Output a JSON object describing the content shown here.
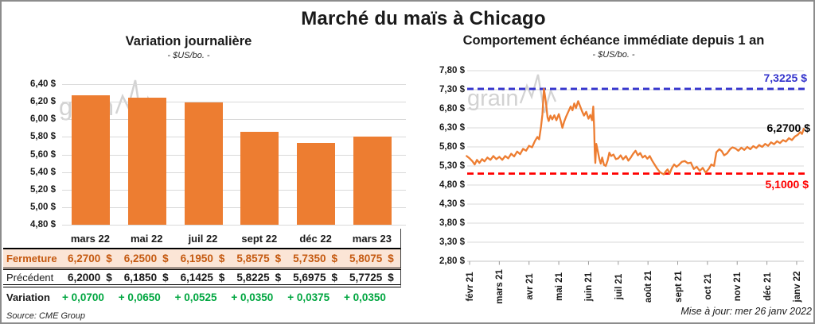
{
  "page": {
    "title": "Marché du maïs à Chicago",
    "updated": "Mise à jour: mer 26 janv 2022",
    "source": "Source: CME Group",
    "watermark": "grain"
  },
  "colors": {
    "orange": "#ED7D31",
    "blue": "#3333CC",
    "red": "#FF0000",
    "green": "#00A640",
    "fermeture_bg": "#FBE5D6",
    "fermeture_text": "#C55A11",
    "grid": "#D9D9D9",
    "watermark": "#CBCBCB"
  },
  "chart_data": [
    {
      "type": "bar",
      "title": "Variation journalière",
      "subtitle": "- $US/bo. -",
      "categories": [
        "mars 22",
        "mai 22",
        "juil 22",
        "sept 22",
        "déc 22",
        "mars 23"
      ],
      "values": [
        6.27,
        6.25,
        6.195,
        5.8575,
        5.735,
        5.8075
      ],
      "ylim": [
        4.8,
        6.4
      ],
      "ytick_step": 0.2,
      "y_labels": [
        "6,40 $",
        "6,20 $",
        "6,00 $",
        "5,80 $",
        "5,60 $",
        "5,40 $",
        "5,20 $",
        "5,00 $",
        "4,80 $"
      ],
      "grid": true,
      "legend": "none"
    },
    {
      "type": "line",
      "title": "Comportement échéance immédiate depuis 1 an",
      "subtitle": "- $US/bo. -",
      "x_labels": [
        "févr 21",
        "mars 21",
        "avr 21",
        "mai 21",
        "juin 21",
        "juil 21",
        "août 21",
        "sept 21",
        "oct 21",
        "nov 21",
        "déc 21",
        "janv 22"
      ],
      "ylim": [
        2.8,
        7.8
      ],
      "ytick_step": 0.5,
      "y_labels": [
        "7,80 $",
        "7,30 $",
        "6,80 $",
        "6,30 $",
        "5,80 $",
        "5,30 $",
        "4,80 $",
        "4,30 $",
        "3,80 $",
        "3,30 $",
        "2,80 $"
      ],
      "grid": true,
      "legend": "none",
      "annotations": {
        "high": {
          "label": "7,3225 $",
          "value": 7.3225,
          "style": "dashed"
        },
        "low": {
          "label": "5,1000 $",
          "value": 5.1,
          "style": "dashed"
        },
        "last": {
          "label": "6,2700 $",
          "value": 6.27
        }
      },
      "series": [
        {
          "name": "échéance immédiate",
          "points": [
            [
              -0.1,
              5.56
            ],
            [
              0,
              5.5
            ],
            [
              0.1,
              5.42
            ],
            [
              0.17,
              5.34
            ],
            [
              0.25,
              5.46
            ],
            [
              0.33,
              5.38
            ],
            [
              0.42,
              5.48
            ],
            [
              0.5,
              5.42
            ],
            [
              0.6,
              5.52
            ],
            [
              0.7,
              5.46
            ],
            [
              0.8,
              5.56
            ],
            [
              0.9,
              5.48
            ],
            [
              1.0,
              5.54
            ],
            [
              1.1,
              5.46
            ],
            [
              1.2,
              5.56
            ],
            [
              1.3,
              5.5
            ],
            [
              1.4,
              5.62
            ],
            [
              1.5,
              5.55
            ],
            [
              1.6,
              5.68
            ],
            [
              1.7,
              5.61
            ],
            [
              1.8,
              5.75
            ],
            [
              1.9,
              5.7
            ],
            [
              2.0,
              5.83
            ],
            [
              2.1,
              5.79
            ],
            [
              2.2,
              5.96
            ],
            [
              2.28,
              6.06
            ],
            [
              2.34,
              6.0
            ],
            [
              2.4,
              6.32
            ],
            [
              2.45,
              6.65
            ],
            [
              2.5,
              7.3225
            ],
            [
              2.54,
              7.12
            ],
            [
              2.58,
              6.88
            ],
            [
              2.62,
              6.58
            ],
            [
              2.66,
              6.48
            ],
            [
              2.72,
              6.62
            ],
            [
              2.78,
              6.52
            ],
            [
              2.85,
              6.63
            ],
            [
              2.92,
              6.5
            ],
            [
              3.0,
              6.66
            ],
            [
              3.06,
              6.5
            ],
            [
              3.12,
              6.3
            ],
            [
              3.18,
              6.46
            ],
            [
              3.25,
              6.6
            ],
            [
              3.32,
              6.72
            ],
            [
              3.4,
              6.86
            ],
            [
              3.46,
              6.76
            ],
            [
              3.52,
              6.94
            ],
            [
              3.58,
              6.82
            ],
            [
              3.65,
              7.0
            ],
            [
              3.72,
              6.86
            ],
            [
              3.78,
              6.74
            ],
            [
              3.85,
              6.62
            ],
            [
              3.92,
              6.72
            ],
            [
              4.0,
              6.54
            ],
            [
              4.06,
              6.64
            ],
            [
              4.12,
              6.5
            ],
            [
              4.16,
              6.86
            ],
            [
              4.19,
              6.3
            ],
            [
              4.21,
              5.65
            ],
            [
              4.23,
              5.38
            ],
            [
              4.26,
              5.88
            ],
            [
              4.31,
              5.7
            ],
            [
              4.36,
              5.5
            ],
            [
              4.41,
              5.36
            ],
            [
              4.46,
              5.52
            ],
            [
              4.52,
              5.33
            ],
            [
              4.58,
              5.3
            ],
            [
              4.64,
              5.44
            ],
            [
              4.7,
              5.65
            ],
            [
              4.76,
              5.56
            ],
            [
              4.84,
              5.6
            ],
            [
              4.92,
              5.48
            ],
            [
              5.0,
              5.5
            ],
            [
              5.08,
              5.58
            ],
            [
              5.16,
              5.47
            ],
            [
              5.26,
              5.56
            ],
            [
              5.34,
              5.44
            ],
            [
              5.42,
              5.52
            ],
            [
              5.5,
              5.62
            ],
            [
              5.58,
              5.7
            ],
            [
              5.66,
              5.58
            ],
            [
              5.74,
              5.64
            ],
            [
              5.82,
              5.52
            ],
            [
              5.9,
              5.57
            ],
            [
              5.98,
              5.49
            ],
            [
              6.06,
              5.56
            ],
            [
              6.14,
              5.44
            ],
            [
              6.22,
              5.34
            ],
            [
              6.3,
              5.24
            ],
            [
              6.4,
              5.14
            ],
            [
              6.53,
              5.08
            ],
            [
              6.6,
              5.16
            ],
            [
              6.66,
              5.21
            ],
            [
              6.73,
              5.1
            ],
            [
              6.8,
              5.24
            ],
            [
              6.88,
              5.34
            ],
            [
              6.96,
              5.28
            ],
            [
              7.04,
              5.33
            ],
            [
              7.14,
              5.41
            ],
            [
              7.24,
              5.43
            ],
            [
              7.34,
              5.37
            ],
            [
              7.44,
              5.39
            ],
            [
              7.54,
              5.22
            ],
            [
              7.64,
              5.28
            ],
            [
              7.74,
              5.17
            ],
            [
              7.84,
              5.25
            ],
            [
              7.94,
              5.13
            ],
            [
              8.04,
              5.22
            ],
            [
              8.13,
              5.34
            ],
            [
              8.22,
              5.3
            ],
            [
              8.3,
              5.66
            ],
            [
              8.4,
              5.74
            ],
            [
              8.48,
              5.69
            ],
            [
              8.56,
              5.58
            ],
            [
              8.66,
              5.63
            ],
            [
              8.76,
              5.74
            ],
            [
              8.84,
              5.79
            ],
            [
              8.94,
              5.76
            ],
            [
              9.04,
              5.7
            ],
            [
              9.14,
              5.78
            ],
            [
              9.24,
              5.72
            ],
            [
              9.34,
              5.8
            ],
            [
              9.44,
              5.74
            ],
            [
              9.54,
              5.82
            ],
            [
              9.64,
              5.77
            ],
            [
              9.74,
              5.85
            ],
            [
              9.84,
              5.8
            ],
            [
              9.94,
              5.88
            ],
            [
              10.04,
              5.83
            ],
            [
              10.14,
              5.92
            ],
            [
              10.24,
              5.87
            ],
            [
              10.34,
              5.95
            ],
            [
              10.44,
              5.9
            ],
            [
              10.54,
              5.98
            ],
            [
              10.64,
              5.94
            ],
            [
              10.74,
              6.03
            ],
            [
              10.84,
              5.98
            ],
            [
              10.94,
              6.07
            ],
            [
              11.04,
              6.12
            ],
            [
              11.12,
              6.19
            ],
            [
              11.18,
              6.14
            ],
            [
              11.24,
              6.28
            ]
          ]
        }
      ]
    }
  ],
  "table": {
    "currency": "$",
    "columns": [
      "mars 22",
      "mai 22",
      "juil 22",
      "sept 22",
      "déc 22",
      "mars 23"
    ],
    "rows": [
      {
        "label": "Fermeture",
        "style": "fermeture",
        "with_currency": true,
        "values": [
          "6,2700",
          "6,2500",
          "6,1950",
          "5,8575",
          "5,7350",
          "5,8075"
        ]
      },
      {
        "label": "Précédent",
        "style": "precedent",
        "with_currency": true,
        "values": [
          "6,2000",
          "6,1850",
          "6,1425",
          "5,8225",
          "5,6975",
          "5,7725"
        ]
      },
      {
        "label": "Variation",
        "style": "variation",
        "with_currency": false,
        "values": [
          "+ 0,0700",
          "+ 0,0650",
          "+ 0,0525",
          "+ 0,0350",
          "+ 0,0375",
          "+ 0,0350"
        ]
      }
    ]
  }
}
